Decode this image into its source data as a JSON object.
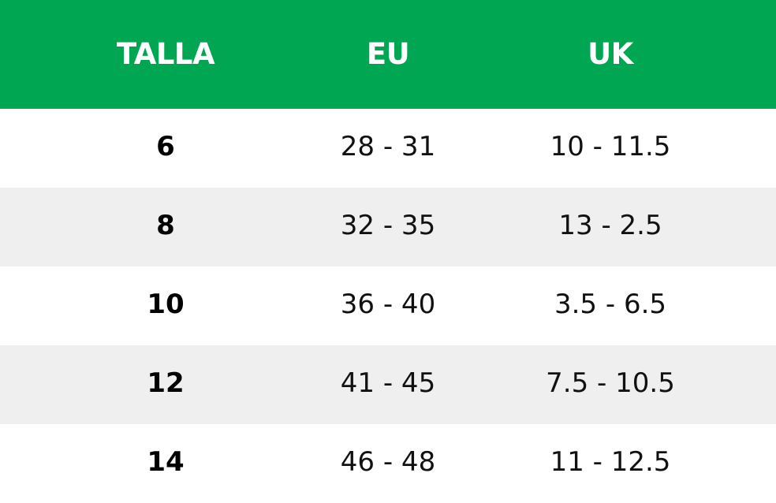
{
  "colors": {
    "header_bg": "#00a651",
    "header_text": "#ffffff",
    "alt_row_bg": "#efefef",
    "row_bg": "#ffffff"
  },
  "table": {
    "headers": [
      "TALLA",
      "EU",
      "UK"
    ],
    "rows": [
      [
        "6",
        "28 - 31",
        "10 - 11.5"
      ],
      [
        "8",
        "32 - 35",
        "13 - 2.5"
      ],
      [
        "10",
        "36 - 40",
        "3.5 - 6.5"
      ],
      [
        "12",
        "41 - 45",
        "7.5 - 10.5"
      ],
      [
        "14",
        "46 - 48",
        "11 - 12.5"
      ]
    ]
  }
}
